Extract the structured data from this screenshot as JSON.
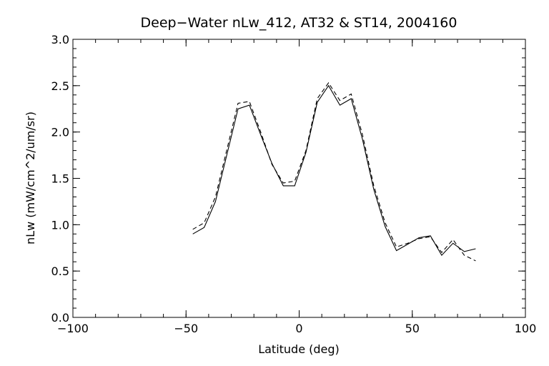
{
  "chart_data": {
    "type": "line",
    "title": "Deep−Water nLw_412, AT32 & ST14, 2004160",
    "xlabel": "Latitude (deg)",
    "ylabel": "nLw (mW/cm^2/um/sr)",
    "xlim": [
      -100,
      100
    ],
    "ylim": [
      0.0,
      3.0
    ],
    "xticks": [
      -100,
      -50,
      0,
      50,
      100
    ],
    "xtick_labels": [
      "−100",
      "−50",
      "0",
      "50",
      "100"
    ],
    "yticks": [
      0.0,
      0.5,
      1.0,
      1.5,
      2.0,
      2.5,
      3.0
    ],
    "ytick_labels": [
      "0.0",
      "0.5",
      "1.0",
      "1.5",
      "2.0",
      "2.5",
      "3.0"
    ],
    "grid": false,
    "series": [
      {
        "style": "solid",
        "x": [
          -47,
          -42,
          -37,
          -27,
          -22,
          -17,
          -12,
          -7,
          -2,
          3,
          8,
          13,
          18,
          23,
          28,
          33,
          38,
          43,
          48,
          53,
          58,
          63,
          68,
          73,
          78
        ],
        "y": [
          0.9,
          0.97,
          1.25,
          2.25,
          2.29,
          1.97,
          1.66,
          1.42,
          1.42,
          1.78,
          2.32,
          2.5,
          2.29,
          2.36,
          1.92,
          1.38,
          0.98,
          0.72,
          0.79,
          0.86,
          0.88,
          0.67,
          0.8,
          0.71,
          0.74
        ]
      },
      {
        "style": "dashed",
        "x": [
          -47,
          -42,
          -37,
          -27,
          -22,
          -17,
          -12,
          -7,
          -2,
          3,
          8,
          13,
          18,
          23,
          28,
          33,
          38,
          43,
          48,
          53,
          58,
          63,
          68,
          73,
          78
        ],
        "y": [
          0.95,
          1.02,
          1.3,
          2.31,
          2.33,
          2.0,
          1.65,
          1.45,
          1.47,
          1.8,
          2.36,
          2.53,
          2.34,
          2.41,
          1.97,
          1.42,
          1.02,
          0.76,
          0.8,
          0.85,
          0.87,
          0.7,
          0.84,
          0.67,
          0.61
        ]
      }
    ]
  }
}
